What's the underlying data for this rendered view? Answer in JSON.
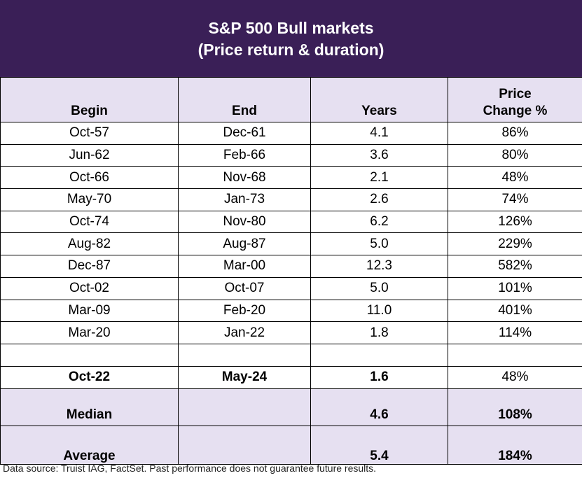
{
  "title_line1": "S&P 500 Bull markets",
  "title_line2": "(Price return & duration)",
  "chart_data": {
    "type": "table",
    "columns": [
      "Begin",
      "End",
      "Years",
      "Price Change %"
    ],
    "header_price_line1": "Price",
    "header_price_line2": "Change %",
    "rows": [
      [
        "Oct-57",
        "Dec-61",
        "4.1",
        "86%"
      ],
      [
        "Jun-62",
        "Feb-66",
        "3.6",
        "80%"
      ],
      [
        "Oct-66",
        "Nov-68",
        "2.1",
        "48%"
      ],
      [
        "May-70",
        "Jan-73",
        "2.6",
        "74%"
      ],
      [
        "Oct-74",
        "Nov-80",
        "6.2",
        "126%"
      ],
      [
        "Aug-82",
        "Aug-87",
        "5.0",
        "229%"
      ],
      [
        "Dec-87",
        "Mar-00",
        "12.3",
        "582%"
      ],
      [
        "Oct-02",
        "Oct-07",
        "5.0",
        "101%"
      ],
      [
        "Mar-09",
        "Feb-20",
        "11.0",
        "401%"
      ],
      [
        "Mar-20",
        "Jan-22",
        "1.8",
        "114%"
      ]
    ],
    "current": [
      "Oct-22",
      "May-24",
      "1.6",
      "48%"
    ],
    "summary": [
      {
        "label": "Median",
        "years": "4.6",
        "price_change": "108%"
      },
      {
        "label": "Average",
        "years": "5.4",
        "price_change": "184%"
      }
    ]
  },
  "footnote": "Data source: Truist IAG, FactSet. Past performance does not guarantee future results.",
  "colors": {
    "title_background": "#3a1f57",
    "header_background": "#e6e0f1",
    "title_text": "#ffffff"
  }
}
